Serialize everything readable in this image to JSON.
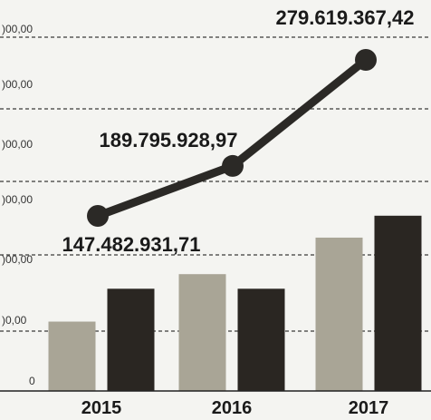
{
  "chart_data": {
    "type": "bar",
    "categories": [
      "2015",
      "2016",
      "2017"
    ],
    "y_tick_labels": [
      ")00,00",
      ")00,00",
      ")00,00",
      ")00,00",
      ")00,00",
      ")0,00",
      "0"
    ],
    "bar_series": [
      {
        "color": "#a9a596",
        "values": [
          0.95,
          1.6,
          2.1
        ]
      },
      {
        "color": "#2a2622",
        "values": [
          1.4,
          1.4,
          2.4
        ]
      }
    ],
    "line_series": {
      "color": "#2b2926",
      "values": [
        147482931.71,
        189795928.97,
        279619367.42
      ],
      "labels": [
        "147.482.931,71",
        "189.795.928,97",
        "279.619.367,42"
      ]
    },
    "ylim": [
      0,
      5.0
    ],
    "line_scale": "independent",
    "grid": "dashed-horizontal",
    "legend": "none",
    "title": "",
    "xlabel": "",
    "ylabel": ""
  }
}
